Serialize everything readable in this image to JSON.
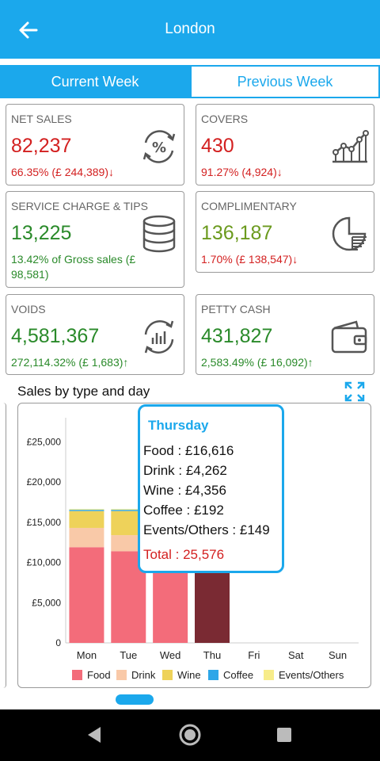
{
  "appbar": {
    "title": "London",
    "back_icon": "arrow-left-icon"
  },
  "tabs": [
    {
      "label": "Current Week",
      "active": true
    },
    {
      "label": "Previous Week",
      "active": false
    }
  ],
  "cards": {
    "net_sales": {
      "title": "NET SALES",
      "value": "82,237",
      "sub": "66.35% (£ 244,389)↓",
      "icon": "percent-cycle-icon"
    },
    "covers": {
      "title": "COVERS",
      "value": "430",
      "sub": "91.27% (4,924)↓",
      "icon": "line-chart-icon"
    },
    "service": {
      "title": "SERVICE CHARGE & TIPS",
      "value": "13,225",
      "sub": "13.42% of Gross sales (£ 98,581)",
      "icon": "coin-stack-icon"
    },
    "complimentary": {
      "title": "COMPLIMENTARY",
      "value": "136,187",
      "sub": "1.70% (£ 138,547)↓",
      "icon": "pie-chart-icon"
    },
    "voids": {
      "title": "VOIDS",
      "value": "4,581,367",
      "sub": "272,114.32% (£ 1,683)↑",
      "icon": "refresh-chart-icon"
    },
    "petty_cash": {
      "title": "PETTY CASH",
      "value": "431,827",
      "sub": "2,583.49% (£ 16,092)↑",
      "icon": "wallet-icon"
    }
  },
  "section": {
    "title": "Sales by type and day",
    "expand_icon": "expand-icon"
  },
  "tooltip": {
    "day": "Thursday",
    "lines": [
      "Food : £16,616",
      "Drink : £4,262",
      "Wine : £4,356",
      "Coffee : £192",
      "Events/Others : £149"
    ],
    "total": "Total : 25,576"
  },
  "colors": {
    "primary": "#1ba8ec",
    "food": "#f36c7a",
    "drink": "#f9c9a8",
    "wine": "#eed25a",
    "coffee": "#2da6e8",
    "events": "#f7ec8a",
    "highlight": "#7a2a33"
  },
  "chart_data": {
    "type": "bar",
    "stacked": true,
    "categories": [
      "Mon",
      "Tue",
      "Wed",
      "Thu",
      "Fri",
      "Sat",
      "Sun"
    ],
    "series": [
      {
        "name": "Food",
        "values": [
          11900,
          11400,
          16616,
          16616,
          0,
          0,
          0
        ]
      },
      {
        "name": "Drink",
        "values": [
          2400,
          2000,
          4262,
          4262,
          0,
          0,
          0
        ]
      },
      {
        "name": "Wine",
        "values": [
          2100,
          3000,
          4356,
          4356,
          0,
          0,
          0
        ]
      },
      {
        "name": "Coffee",
        "values": [
          150,
          150,
          192,
          192,
          0,
          0,
          0
        ]
      },
      {
        "name": "Events/Others",
        "values": [
          100,
          100,
          149,
          149,
          0,
          0,
          0
        ]
      }
    ],
    "highlighted_category": "Thu",
    "yticks": [
      "0",
      "£5,000",
      "£10,000",
      "£15,000",
      "£20,000",
      "£25,000"
    ],
    "ytick_values": [
      0,
      5000,
      10000,
      15000,
      20000,
      25000
    ],
    "ylim": [
      0,
      28000
    ],
    "legend_position": "bottom"
  },
  "navbar": {
    "back": "nav-back-icon",
    "home": "nav-home-icon",
    "recents": "nav-recents-icon"
  }
}
